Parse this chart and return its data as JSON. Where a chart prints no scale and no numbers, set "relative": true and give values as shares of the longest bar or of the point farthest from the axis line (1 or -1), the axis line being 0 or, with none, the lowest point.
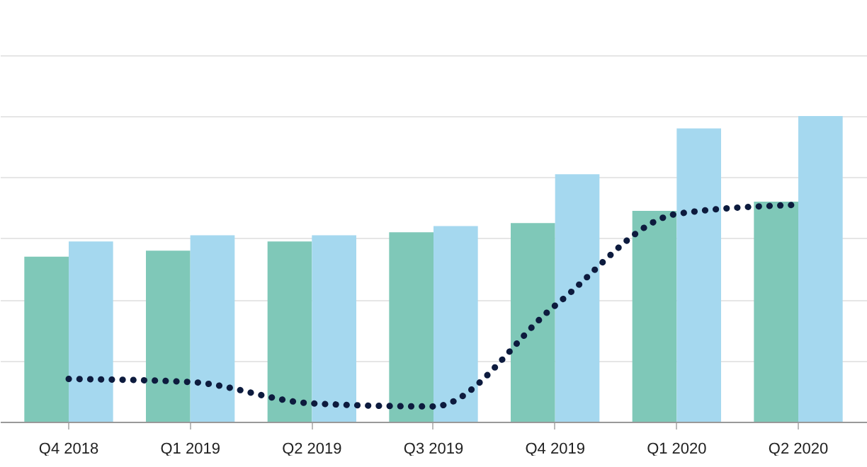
{
  "chart_data": {
    "type": "bar",
    "relative": true,
    "grid": "y",
    "categories": [
      "Q4 2018",
      "Q1 2019",
      "Q2 2019",
      "Q3 2019",
      "Q4 2019",
      "Q1 2020",
      "Q2 2020"
    ],
    "series": [
      {
        "color": "#7fc8b8",
        "values": [
          0.54,
          0.56,
          0.59,
          0.62,
          0.65,
          0.69,
          0.72
        ]
      },
      {
        "color": "#a5d8ef",
        "values": [
          0.59,
          0.61,
          0.61,
          0.64,
          0.81,
          0.96,
          1
        ]
      },
      {
        "type": "line",
        "color": "#0d1b3e",
        "line_style": "dotted",
        "values": [
          0.14,
          0.13,
          0.06,
          0.05,
          0.38,
          0.68,
          0.71
        ]
      }
    ]
  }
}
